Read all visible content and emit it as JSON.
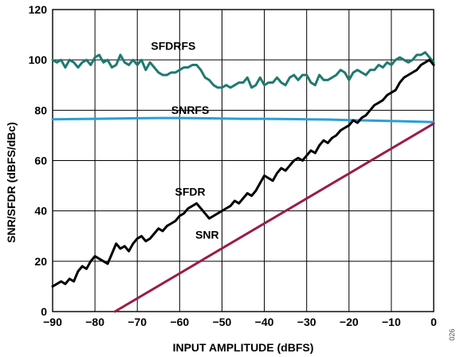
{
  "figure_id": "026",
  "chart_data": {
    "type": "line",
    "title": "",
    "xlabel": "INPUT AMPLITUDE (dBFS)",
    "ylabel": "SNR/SFDR (dBFS/dBc)",
    "xlim": [
      -90,
      0
    ],
    "ylim": [
      0,
      120
    ],
    "grid": true,
    "x_ticks": [
      -90,
      -80,
      -70,
      -60,
      -50,
      -40,
      -30,
      -20,
      -10,
      0
    ],
    "y_ticks": [
      0,
      20,
      40,
      60,
      80,
      100,
      120
    ],
    "x_tick_labels": [
      "−90",
      "−80",
      "−70",
      "−60",
      "−50",
      "−40",
      "−30",
      "−20",
      "−10",
      "0"
    ],
    "y_tick_labels": [
      "0",
      "20",
      "40",
      "60",
      "80",
      "100",
      "120"
    ],
    "series": [
      {
        "name": "SFDRFS",
        "color": "#1f7a70",
        "label_at": [
          -61.5,
          104
        ],
        "x": [
          -90,
          -89,
          -88,
          -87,
          -86,
          -85,
          -84,
          -83,
          -82,
          -81,
          -80,
          -79,
          -78,
          -77,
          -76,
          -75,
          -74,
          -73,
          -72,
          -71,
          -70,
          -69,
          -68,
          -67,
          -66,
          -65,
          -64,
          -63,
          -62,
          -61,
          -60,
          -59,
          -58,
          -57,
          -56,
          -55,
          -54,
          -53,
          -52,
          -51,
          -50,
          -49,
          -48,
          -47,
          -46,
          -45,
          -44,
          -43,
          -42,
          -41,
          -40,
          -39,
          -38,
          -37,
          -36,
          -35,
          -34,
          -33,
          -32,
          -31,
          -30,
          -29,
          -28,
          -27,
          -26,
          -25,
          -24,
          -23,
          -22,
          -21,
          -20,
          -19,
          -18,
          -17,
          -16,
          -15,
          -14,
          -13,
          -12,
          -11,
          -10,
          -9,
          -8,
          -7,
          -6,
          -5,
          -4,
          -3,
          -2,
          -1,
          0
        ],
        "y": [
          100,
          99,
          100,
          97,
          100,
          99,
          97,
          99,
          100,
          98,
          101,
          102,
          99,
          100,
          97,
          98,
          102,
          99,
          98,
          100,
          98,
          100,
          96,
          99,
          97,
          95,
          94,
          94,
          95,
          95,
          96,
          97,
          97,
          98,
          98,
          96,
          93,
          92,
          90,
          89,
          89,
          90,
          89,
          90,
          91,
          91,
          93,
          89,
          90,
          93,
          90,
          91,
          91,
          93,
          91,
          90,
          93,
          94,
          92,
          94,
          94,
          91,
          90,
          94,
          92,
          92,
          93,
          94,
          96,
          95,
          92,
          95,
          96,
          95,
          94,
          96,
          96,
          98,
          97,
          99,
          98,
          100,
          101,
          100,
          99,
          100,
          102,
          102,
          103,
          101,
          99
        ]
      },
      {
        "name": "SNRFS",
        "color": "#2a9fd6",
        "label_at": [
          -57.5,
          78.5
        ],
        "x": [
          -90,
          -85,
          -80,
          -75,
          -70,
          -65,
          -60,
          -55,
          -50,
          -45,
          -40,
          -35,
          -30,
          -25,
          -20,
          -15,
          -10,
          -5,
          0
        ],
        "y": [
          76.4,
          76.5,
          76.6,
          76.7,
          76.8,
          76.9,
          76.9,
          76.8,
          76.7,
          76.6,
          76.6,
          76.5,
          76.4,
          76.3,
          76.1,
          75.9,
          75.7,
          75.5,
          75.3
        ]
      },
      {
        "name": "SFDR",
        "color": "#000000",
        "label_at": [
          -57.5,
          46
        ],
        "x": [
          -90,
          -89,
          -88,
          -87,
          -86,
          -85,
          -84,
          -83,
          -82,
          -81,
          -80,
          -79,
          -78,
          -77,
          -76,
          -75,
          -74,
          -73,
          -72,
          -71,
          -70,
          -69,
          -68,
          -67,
          -66,
          -65,
          -64,
          -63,
          -62,
          -61,
          -60,
          -59,
          -58,
          -57,
          -56,
          -55,
          -54,
          -53,
          -52,
          -51,
          -50,
          -49,
          -48,
          -47,
          -46,
          -45,
          -44,
          -43,
          -42,
          -41,
          -40,
          -39,
          -38,
          -37,
          -36,
          -35,
          -34,
          -33,
          -32,
          -31,
          -30,
          -29,
          -28,
          -27,
          -26,
          -25,
          -24,
          -23,
          -22,
          -21,
          -20,
          -19,
          -18,
          -17,
          -16,
          -15,
          -14,
          -13,
          -12,
          -11,
          -10,
          -9,
          -8,
          -7,
          -6,
          -5,
          -4,
          -3,
          -2,
          -1,
          0
        ],
        "y": [
          10,
          11,
          12,
          11,
          13,
          12,
          16,
          18,
          17,
          20,
          22,
          21,
          20,
          19,
          23,
          27,
          25,
          26,
          24,
          27,
          29,
          30,
          28,
          29,
          31,
          33,
          32,
          34,
          35,
          36,
          38,
          39,
          41,
          42,
          43,
          41,
          39,
          37,
          38,
          39,
          40,
          41,
          42,
          44,
          43,
          45,
          47,
          46,
          48,
          51,
          54,
          53,
          52,
          55,
          57,
          56,
          58,
          60,
          61,
          60,
          62,
          64,
          63,
          66,
          68,
          67,
          69,
          70,
          72,
          73,
          74,
          76,
          75,
          77,
          78,
          80,
          82,
          83,
          84,
          86,
          87,
          88,
          91,
          93,
          94,
          95,
          96,
          98,
          99,
          100,
          98
        ]
      },
      {
        "name": "SNR",
        "color": "#9b1b4a",
        "label_at": [
          -53.5,
          29
        ],
        "x": [
          -75.3,
          0
        ],
        "y": [
          0,
          74.7
        ]
      }
    ]
  }
}
